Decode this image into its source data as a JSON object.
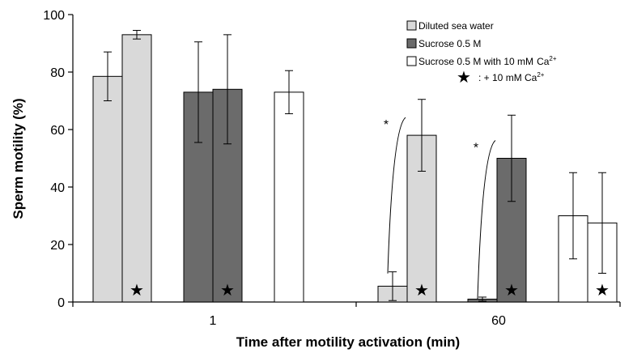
{
  "chart_data": {
    "type": "bar",
    "title": "",
    "xlabel": "Time after motility activation  (min)",
    "ylabel": "Sperm motility (%)",
    "ylim": [
      0,
      100
    ],
    "yticks": [
      "0",
      "20",
      "40",
      "60",
      "80",
      "100"
    ],
    "categories": [
      "1",
      "60"
    ],
    "colors": {
      "Diluted sea water": "#d9d9d9",
      "Sucrose 0.5 M": "#6b6b6b",
      "Sucrose 0.5 M with 10 mM Ca2+": "#ffffff"
    },
    "bars": [
      {
        "category": "1",
        "condition": "Diluted sea water",
        "ca": false,
        "value": 78.5,
        "error": 8.5
      },
      {
        "category": "1",
        "condition": "Diluted sea water",
        "ca": true,
        "value": 93,
        "error": 1.5
      },
      {
        "category": "1",
        "condition": "Sucrose 0.5 M",
        "ca": false,
        "value": 73,
        "error": 17.5
      },
      {
        "category": "1",
        "condition": "Sucrose 0.5 M",
        "ca": true,
        "value": 74,
        "error": 19
      },
      {
        "category": "1",
        "condition": "Sucrose 0.5 M with 10 mM Ca2+",
        "ca": false,
        "value": 73,
        "error": 7.5
      },
      {
        "category": "60",
        "condition": "Diluted sea water",
        "ca": false,
        "value": 5.5,
        "error": 5
      },
      {
        "category": "60",
        "condition": "Diluted sea water",
        "ca": true,
        "value": 58,
        "error": 12.5
      },
      {
        "category": "60",
        "condition": "Sucrose 0.5 M",
        "ca": false,
        "value": 1,
        "error": 0.7
      },
      {
        "category": "60",
        "condition": "Sucrose 0.5 M",
        "ca": true,
        "value": 50,
        "error": 15
      },
      {
        "category": "60",
        "condition": "Sucrose 0.5 M with 10 mM Ca2+",
        "ca": false,
        "value": 30,
        "error": 15
      },
      {
        "category": "60",
        "condition": "Sucrose 0.5 M with 10 mM Ca2+",
        "ca": true,
        "value": 27.5,
        "error": 17.5
      }
    ],
    "significance": [
      {
        "label": "*",
        "between": [
          5,
          6
        ]
      },
      {
        "label": "*",
        "between": [
          7,
          8
        ]
      }
    ],
    "legend": {
      "placement": "top-right",
      "entries": [
        {
          "label": "Diluted sea water",
          "condition": "Diluted sea water"
        },
        {
          "label": "Sucrose 0.5 M",
          "condition": "Sucrose 0.5 M"
        },
        {
          "label": "Sucrose 0.5 M with 10 mM",
          "sup_base": "Ca",
          "sup": "2+",
          "condition": "Sucrose 0.5 M with 10 mM Ca2+"
        }
      ],
      "star_entry": {
        "symbol": "★",
        "label": ": + 10 mM Ca",
        "sup": "2+"
      }
    },
    "grid": false
  }
}
